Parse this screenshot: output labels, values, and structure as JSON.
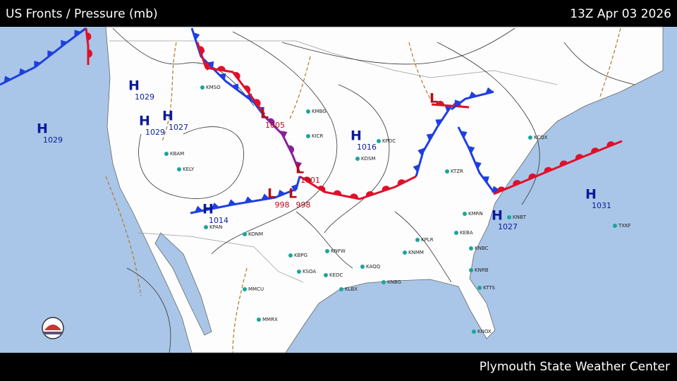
{
  "header": {
    "title": "US Fronts / Pressure (mb)",
    "timestamp": "13Z Apr 03 2026"
  },
  "footer": {
    "credit": "Plymouth State Weather Center"
  },
  "pressure_centers": [
    {
      "type": "H",
      "value": 1029
    },
    {
      "type": "H",
      "value": 1029
    },
    {
      "type": "H",
      "value": 1029
    },
    {
      "type": "H",
      "value": 1027
    },
    {
      "type": "L",
      "value": 1005
    },
    {
      "type": "L",
      "value": 1001
    },
    {
      "type": "L",
      "value": 998
    },
    {
      "type": "L",
      "value": 998
    },
    {
      "type": "H",
      "value": 1016
    },
    {
      "type": "H",
      "value": 1014
    },
    {
      "type": "L"
    },
    {
      "type": "H",
      "value": 1031
    },
    {
      "type": "H",
      "value": 1027
    }
  ],
  "stations": [
    "KMSO",
    "KMBG",
    "KICR",
    "KDSM",
    "KPDC",
    "KBAM",
    "KELY",
    "KPAN",
    "KONM",
    "KBPG",
    "KNFW",
    "KSOA",
    "KAQQ",
    "KEDC",
    "KLBX",
    "KNBG",
    "KNMM",
    "KPLR",
    "KEBA",
    "KNBC",
    "KNRB",
    "KTTS",
    "KNOX",
    "KMRN",
    "KTZR",
    "KCQX",
    "KNBT",
    "TXKF",
    "MMCU",
    "MMRX"
  ]
}
